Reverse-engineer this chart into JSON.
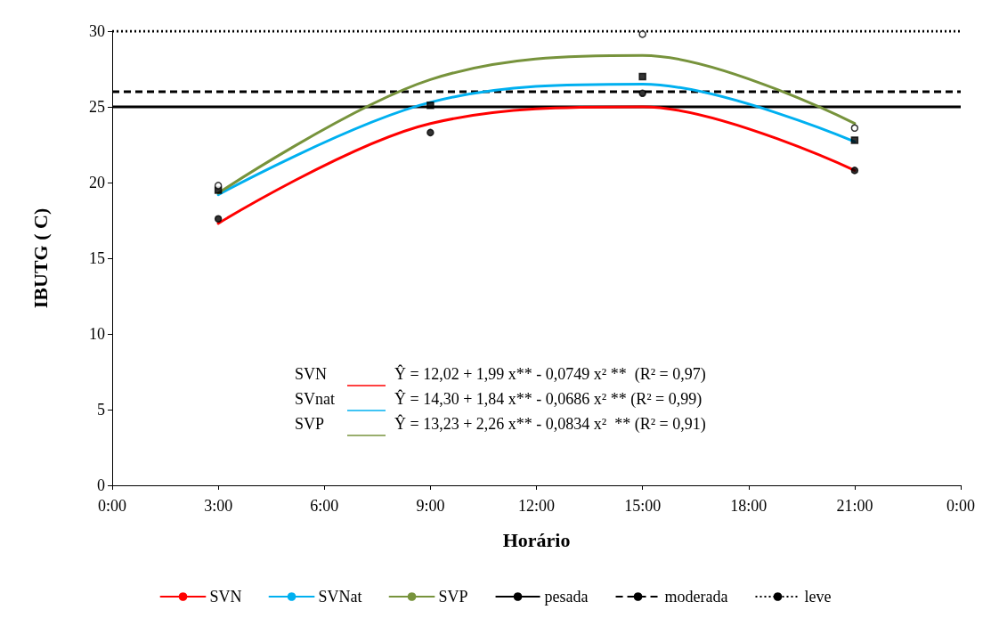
{
  "chart_data": {
    "type": "line",
    "xlabel": "Horário",
    "ylabel": "IBUTG ( C)",
    "xlim": [
      0,
      24
    ],
    "xticks": [
      {
        "value": 0,
        "label": "0:00"
      },
      {
        "value": 3,
        "label": "3:00"
      },
      {
        "value": 6,
        "label": "6:00"
      },
      {
        "value": 9,
        "label": "9:00"
      },
      {
        "value": 12,
        "label": "12:00"
      },
      {
        "value": 15,
        "label": "15:00"
      },
      {
        "value": 18,
        "label": "18:00"
      },
      {
        "value": 21,
        "label": "21:00"
      },
      {
        "value": 24,
        "label": "0:00"
      }
    ],
    "ylim": [
      0,
      30
    ],
    "yticks": [
      0,
      5,
      10,
      15,
      20,
      25,
      30
    ],
    "grid": false,
    "legend": "bottom",
    "series": [
      {
        "name": "SVN",
        "color": "#ff0000",
        "x": [
          3,
          9,
          15,
          21
        ],
        "values": [
          17.3,
          23.9,
          25.0,
          20.8
        ],
        "marker": "none"
      },
      {
        "name": "SVNat",
        "color": "#00b0f0",
        "x": [
          3,
          9,
          15,
          21
        ],
        "values": [
          19.2,
          25.3,
          26.5,
          22.7
        ],
        "marker": "none"
      },
      {
        "name": "SVP",
        "color": "#77933c",
        "x": [
          3,
          9,
          15,
          21
        ],
        "values": [
          19.3,
          26.8,
          28.4,
          23.9
        ],
        "marker": "none"
      },
      {
        "type": "scatter",
        "color": "#000000",
        "x": [
          3,
          9,
          15,
          21
        ],
        "values": [
          17.6,
          23.3,
          25.9,
          20.8
        ],
        "marker": "circle"
      },
      {
        "type": "scatter",
        "color": "#000000",
        "x": [
          3,
          9,
          15,
          21
        ],
        "values": [
          19.5,
          25.1,
          27.0,
          22.8
        ],
        "marker": "square"
      },
      {
        "type": "scatter",
        "color": "#ffffff",
        "x": [
          3,
          9,
          15,
          21
        ],
        "values": [
          19.8,
          null,
          29.8,
          23.6
        ],
        "marker": "circle"
      }
    ],
    "ref_lines": [
      {
        "axis": "y",
        "value": 25,
        "label": "pesada",
        "color": "#000000",
        "line_style": "solid"
      },
      {
        "axis": "y",
        "value": 26,
        "label": "moderada",
        "color": "#000000",
        "line_style": "dashed"
      },
      {
        "axis": "y",
        "value": 30,
        "label": "leve",
        "color": "#000000",
        "line_style": "dotted"
      }
    ],
    "annotations": [
      "SVN  Ŷ = 12,02 + 1,99 x** - 0,0749 x² **  (R² = 0,97)",
      "SVnat  Ŷ = 14,30 + 1,84 x** - 0,0686 x² ** (R² = 0,99)",
      "SVP  Ŷ = 13,23 + 2,26 x** - 0,0834 x²  ** (R² = 0,91)"
    ]
  }
}
